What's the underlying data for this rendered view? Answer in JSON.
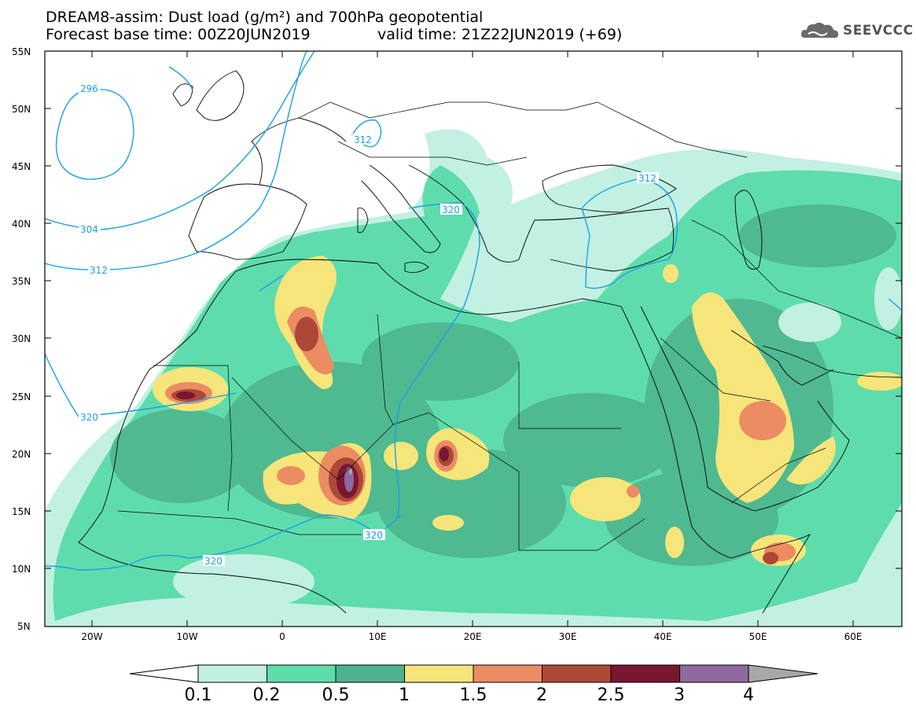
{
  "title": {
    "line1": "DREAM8-assim: Dust load (g/m²) and 700hPa geopotential",
    "line2_base": "Forecast base time: 00Z20JUN2019",
    "line2_valid": "valid time: 21Z22JUN2019 (+69)"
  },
  "logo": {
    "text": "SEEVCCC",
    "icon": "cloud-icon"
  },
  "axes": {
    "lat_labels": [
      "55N",
      "50N",
      "45N",
      "40N",
      "35N",
      "30N",
      "25N",
      "20N",
      "15N",
      "10N",
      "5N"
    ],
    "lon_labels": [
      "20W",
      "10W",
      "0",
      "10E",
      "20E",
      "30E",
      "40E",
      "50E",
      "60E"
    ]
  },
  "contours": {
    "labels": [
      "296",
      "304",
      "312",
      "312",
      "312",
      "320",
      "320",
      "320",
      "320"
    ]
  },
  "colorbar": {
    "labels": [
      "0.1",
      "0.2",
      "0.5",
      "1",
      "1.5",
      "2",
      "2.5",
      "3",
      "4"
    ],
    "colors": [
      "#c2f0e2",
      "#5fdcac",
      "#4db38c",
      "#f5e57a",
      "#eb8c63",
      "#ad4837",
      "#7a1630",
      "#8e6a9e",
      "#a8a8a8"
    ]
  },
  "chart_data": {
    "type": "heatmap",
    "title": "DREAM8-assim: Dust load (g/m²) and 700hPa geopotential",
    "variable": "Dust load (g/m²)",
    "overlay": "700hPa geopotential",
    "levels": [
      0.1,
      0.2,
      0.5,
      1,
      1.5,
      2,
      2.5,
      3,
      4
    ],
    "lon_range": [
      -25,
      65
    ],
    "lat_range": [
      5,
      55
    ],
    "geopotential_contours": [
      296,
      304,
      312,
      320
    ]
  }
}
